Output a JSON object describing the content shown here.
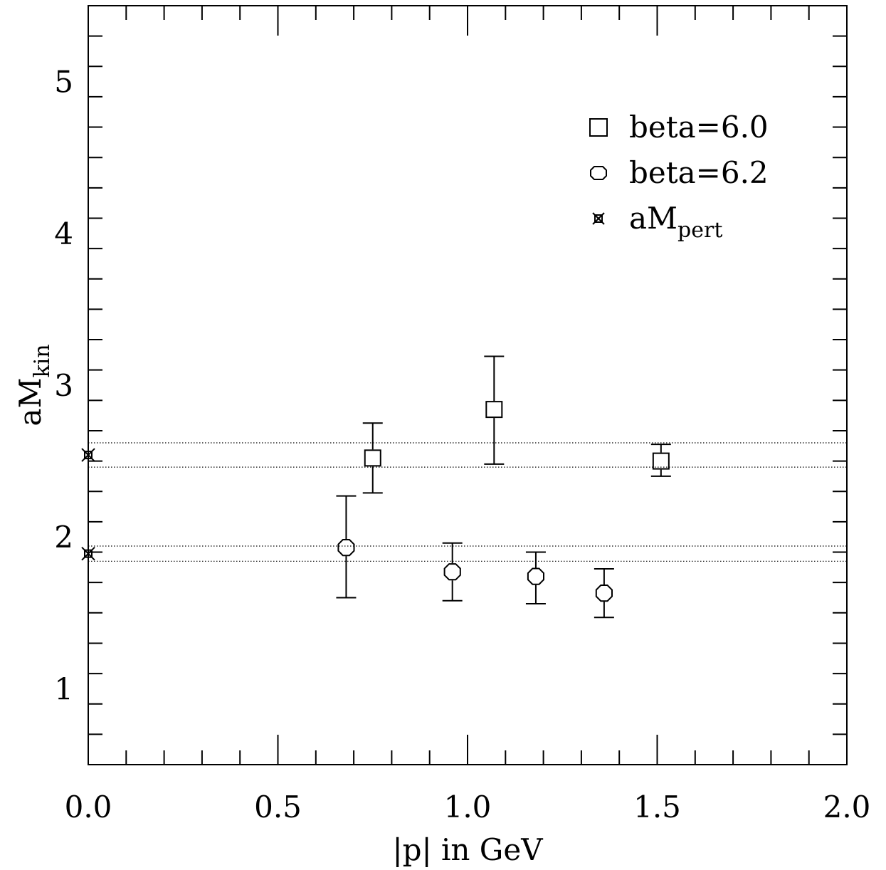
{
  "chart_data": {
    "type": "scatter",
    "title": "",
    "xlabel": "|p| in GeV",
    "ylabel": {
      "main": "aM",
      "sub": "kin"
    },
    "xlim": [
      0.0,
      2.0
    ],
    "ylim": [
      0.5,
      5.5
    ],
    "x_ticks": [
      "0.0",
      "0.5",
      "1.0",
      "1.5",
      "2.0"
    ],
    "y_ticks": [
      "1",
      "2",
      "3",
      "4",
      "5"
    ],
    "grid": false,
    "legend_position": "top-right",
    "series": [
      {
        "name": "beta=6.0",
        "marker": "square",
        "points": [
          {
            "x": 0.75,
            "y": 2.52,
            "lo": 2.29,
            "hi": 2.75
          },
          {
            "x": 1.07,
            "y": 2.84,
            "lo": 2.48,
            "hi": 3.19
          },
          {
            "x": 1.51,
            "y": 2.5,
            "lo": 2.4,
            "hi": 2.61
          }
        ]
      },
      {
        "name": "beta=6.2",
        "marker": "octagon",
        "points": [
          {
            "x": 0.68,
            "y": 1.93,
            "lo": 1.6,
            "hi": 2.27
          },
          {
            "x": 0.96,
            "y": 1.77,
            "lo": 1.58,
            "hi": 1.96
          },
          {
            "x": 1.18,
            "y": 1.74,
            "lo": 1.56,
            "hi": 1.9
          },
          {
            "x": 1.36,
            "y": 1.63,
            "lo": 1.47,
            "hi": 1.79
          }
        ]
      },
      {
        "name": {
          "main": "aM",
          "sub": "pert"
        },
        "marker": "star-square",
        "points": [
          {
            "x": 0.0,
            "y": 2.54
          },
          {
            "x": 0.0,
            "y": 1.89
          }
        ]
      }
    ],
    "bands": [
      {
        "lo": 2.46,
        "hi": 2.62
      },
      {
        "lo": 1.84,
        "hi": 1.94
      }
    ]
  }
}
